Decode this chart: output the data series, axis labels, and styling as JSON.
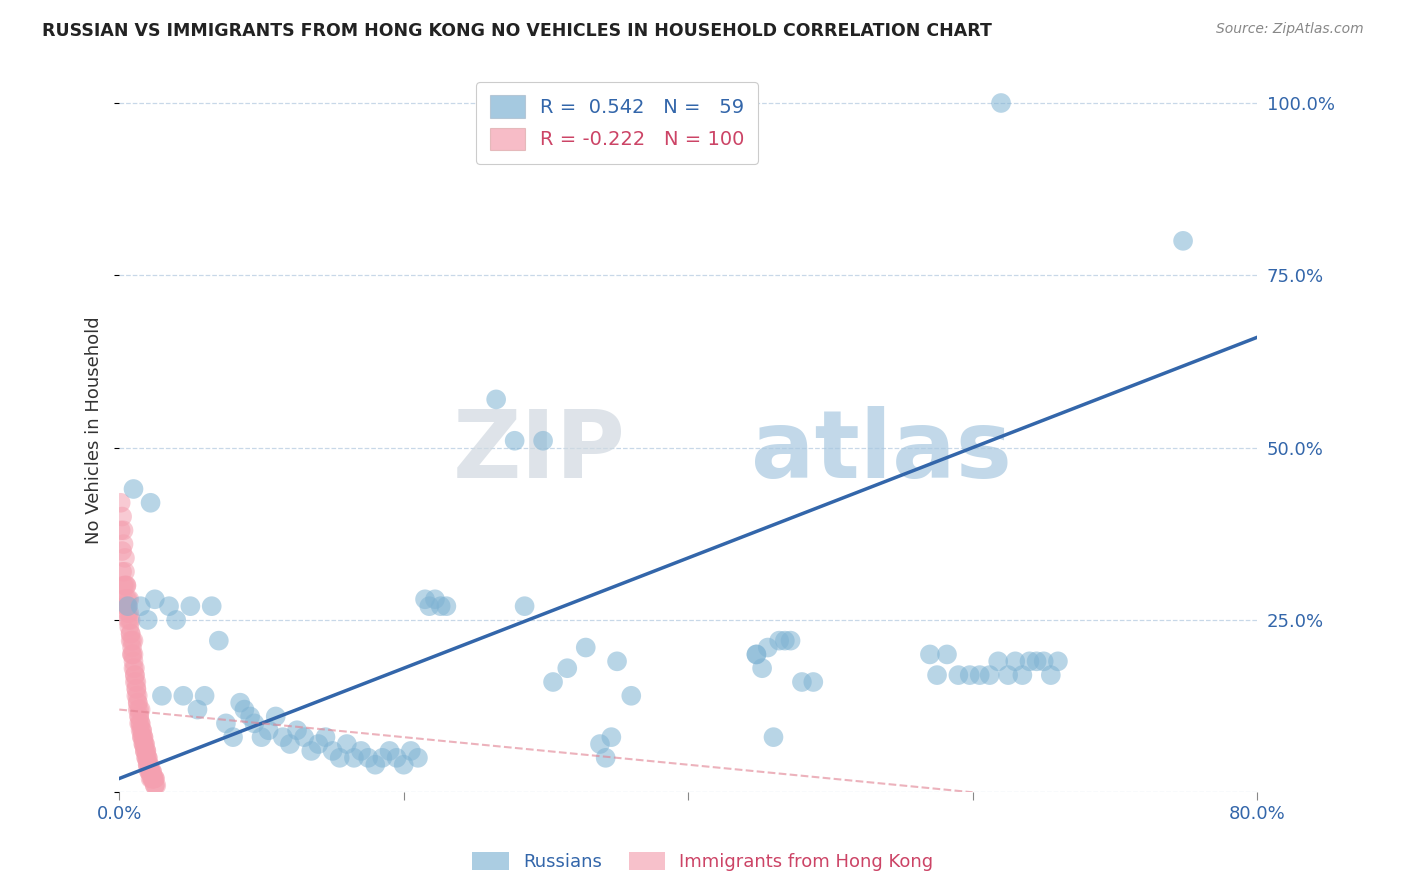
{
  "title": "RUSSIAN VS IMMIGRANTS FROM HONG KONG NO VEHICLES IN HOUSEHOLD CORRELATION CHART",
  "source": "Source: ZipAtlas.com",
  "ylabel_label": "No Vehicles in Household",
  "xlim": [
    0.0,
    0.8
  ],
  "ylim": [
    0.0,
    1.05
  ],
  "xticks": [
    0.0,
    0.2,
    0.4,
    0.6,
    0.8
  ],
  "xtick_labels": [
    "0.0%",
    "",
    "",
    "",
    "80.0%"
  ],
  "yticks": [
    0.0,
    0.25,
    0.5,
    0.75,
    1.0
  ],
  "ytick_labels": [
    "",
    "25.0%",
    "50.0%",
    "75.0%",
    "100.0%"
  ],
  "grid_color": "#c8d8e8",
  "background_color": "#ffffff",
  "watermark_zip": "ZIP",
  "watermark_atlas": "atlas",
  "legend_r_blue": "0.542",
  "legend_n_blue": "59",
  "legend_r_pink": "-0.222",
  "legend_n_pink": "100",
  "blue_color": "#7fb3d3",
  "pink_color": "#f4a0b0",
  "blue_line_color": "#3366aa",
  "pink_line_color": "#e08090",
  "blue_scatter": [
    [
      0.006,
      0.27
    ],
    [
      0.01,
      0.44
    ],
    [
      0.015,
      0.27
    ],
    [
      0.02,
      0.25
    ],
    [
      0.022,
      0.42
    ],
    [
      0.025,
      0.28
    ],
    [
      0.03,
      0.14
    ],
    [
      0.035,
      0.27
    ],
    [
      0.04,
      0.25
    ],
    [
      0.045,
      0.14
    ],
    [
      0.05,
      0.27
    ],
    [
      0.055,
      0.12
    ],
    [
      0.06,
      0.14
    ],
    [
      0.065,
      0.27
    ],
    [
      0.07,
      0.22
    ],
    [
      0.075,
      0.1
    ],
    [
      0.08,
      0.08
    ],
    [
      0.085,
      0.13
    ],
    [
      0.088,
      0.12
    ],
    [
      0.092,
      0.11
    ],
    [
      0.095,
      0.1
    ],
    [
      0.1,
      0.08
    ],
    [
      0.105,
      0.09
    ],
    [
      0.11,
      0.11
    ],
    [
      0.115,
      0.08
    ],
    [
      0.12,
      0.07
    ],
    [
      0.125,
      0.09
    ],
    [
      0.13,
      0.08
    ],
    [
      0.135,
      0.06
    ],
    [
      0.14,
      0.07
    ],
    [
      0.145,
      0.08
    ],
    [
      0.15,
      0.06
    ],
    [
      0.155,
      0.05
    ],
    [
      0.16,
      0.07
    ],
    [
      0.165,
      0.05
    ],
    [
      0.17,
      0.06
    ],
    [
      0.175,
      0.05
    ],
    [
      0.18,
      0.04
    ],
    [
      0.185,
      0.05
    ],
    [
      0.19,
      0.06
    ],
    [
      0.195,
      0.05
    ],
    [
      0.2,
      0.04
    ],
    [
      0.205,
      0.06
    ],
    [
      0.21,
      0.05
    ],
    [
      0.215,
      0.28
    ],
    [
      0.218,
      0.27
    ],
    [
      0.222,
      0.28
    ],
    [
      0.226,
      0.27
    ],
    [
      0.23,
      0.27
    ],
    [
      0.265,
      0.57
    ],
    [
      0.278,
      0.51
    ],
    [
      0.285,
      0.27
    ],
    [
      0.298,
      0.51
    ],
    [
      0.305,
      0.16
    ],
    [
      0.315,
      0.18
    ],
    [
      0.328,
      0.21
    ],
    [
      0.338,
      0.07
    ],
    [
      0.342,
      0.05
    ],
    [
      0.346,
      0.08
    ],
    [
      0.35,
      0.19
    ],
    [
      0.36,
      0.14
    ],
    [
      0.448,
      0.2
    ],
    [
      0.452,
      0.18
    ],
    [
      0.456,
      0.21
    ],
    [
      0.46,
      0.08
    ],
    [
      0.468,
      0.22
    ],
    [
      0.472,
      0.22
    ],
    [
      0.48,
      0.16
    ],
    [
      0.488,
      0.16
    ],
    [
      0.448,
      0.2
    ],
    [
      0.464,
      0.22
    ],
    [
      0.57,
      0.2
    ],
    [
      0.575,
      0.17
    ],
    [
      0.582,
      0.2
    ],
    [
      0.59,
      0.17
    ],
    [
      0.598,
      0.17
    ],
    [
      0.605,
      0.17
    ],
    [
      0.612,
      0.17
    ],
    [
      0.618,
      0.19
    ],
    [
      0.625,
      0.17
    ],
    [
      0.63,
      0.19
    ],
    [
      0.635,
      0.17
    ],
    [
      0.64,
      0.19
    ],
    [
      0.645,
      0.19
    ],
    [
      0.65,
      0.19
    ],
    [
      0.655,
      0.17
    ],
    [
      0.66,
      0.19
    ],
    [
      0.748,
      0.8
    ],
    [
      0.62,
      1.0
    ]
  ],
  "pink_scatter": [
    [
      0.001,
      0.38
    ],
    [
      0.001,
      0.42
    ],
    [
      0.002,
      0.35
    ],
    [
      0.002,
      0.4
    ],
    [
      0.002,
      0.32
    ],
    [
      0.003,
      0.38
    ],
    [
      0.003,
      0.3
    ],
    [
      0.003,
      0.36
    ],
    [
      0.003,
      0.28
    ],
    [
      0.004,
      0.34
    ],
    [
      0.004,
      0.3
    ],
    [
      0.004,
      0.32
    ],
    [
      0.004,
      0.27
    ],
    [
      0.005,
      0.3
    ],
    [
      0.005,
      0.3
    ],
    [
      0.005,
      0.28
    ],
    [
      0.005,
      0.27
    ],
    [
      0.006,
      0.27
    ],
    [
      0.006,
      0.25
    ],
    [
      0.006,
      0.26
    ],
    [
      0.006,
      0.28
    ],
    [
      0.007,
      0.25
    ],
    [
      0.007,
      0.28
    ],
    [
      0.007,
      0.24
    ],
    [
      0.007,
      0.26
    ],
    [
      0.008,
      0.22
    ],
    [
      0.008,
      0.25
    ],
    [
      0.008,
      0.23
    ],
    [
      0.008,
      0.23
    ],
    [
      0.009,
      0.21
    ],
    [
      0.009,
      0.22
    ],
    [
      0.009,
      0.2
    ],
    [
      0.009,
      0.2
    ],
    [
      0.01,
      0.19
    ],
    [
      0.01,
      0.22
    ],
    [
      0.01,
      0.18
    ],
    [
      0.01,
      0.2
    ],
    [
      0.011,
      0.17
    ],
    [
      0.011,
      0.18
    ],
    [
      0.011,
      0.16
    ],
    [
      0.011,
      0.17
    ],
    [
      0.012,
      0.15
    ],
    [
      0.012,
      0.16
    ],
    [
      0.012,
      0.14
    ],
    [
      0.012,
      0.15
    ],
    [
      0.013,
      0.13
    ],
    [
      0.013,
      0.14
    ],
    [
      0.013,
      0.12
    ],
    [
      0.013,
      0.13
    ],
    [
      0.014,
      0.11
    ],
    [
      0.014,
      0.12
    ],
    [
      0.014,
      0.1
    ],
    [
      0.014,
      0.11
    ],
    [
      0.015,
      0.1
    ],
    [
      0.015,
      0.12
    ],
    [
      0.015,
      0.09
    ],
    [
      0.015,
      0.1
    ],
    [
      0.016,
      0.09
    ],
    [
      0.016,
      0.09
    ],
    [
      0.016,
      0.08
    ],
    [
      0.016,
      0.08
    ],
    [
      0.017,
      0.08
    ],
    [
      0.017,
      0.08
    ],
    [
      0.017,
      0.07
    ],
    [
      0.017,
      0.07
    ],
    [
      0.018,
      0.07
    ],
    [
      0.018,
      0.07
    ],
    [
      0.018,
      0.06
    ],
    [
      0.018,
      0.06
    ],
    [
      0.019,
      0.06
    ],
    [
      0.019,
      0.06
    ],
    [
      0.019,
      0.05
    ],
    [
      0.019,
      0.05
    ],
    [
      0.02,
      0.05
    ],
    [
      0.02,
      0.05
    ],
    [
      0.02,
      0.04
    ],
    [
      0.02,
      0.04
    ],
    [
      0.021,
      0.04
    ],
    [
      0.021,
      0.04
    ],
    [
      0.021,
      0.03
    ],
    [
      0.021,
      0.03
    ],
    [
      0.022,
      0.03
    ],
    [
      0.022,
      0.03
    ],
    [
      0.022,
      0.03
    ],
    [
      0.022,
      0.02
    ],
    [
      0.023,
      0.03
    ],
    [
      0.023,
      0.03
    ],
    [
      0.023,
      0.02
    ],
    [
      0.023,
      0.02
    ],
    [
      0.024,
      0.02
    ],
    [
      0.024,
      0.02
    ],
    [
      0.024,
      0.02
    ],
    [
      0.024,
      0.02
    ],
    [
      0.025,
      0.02
    ],
    [
      0.025,
      0.02
    ],
    [
      0.025,
      0.01
    ],
    [
      0.025,
      0.01
    ],
    [
      0.026,
      0.01
    ]
  ],
  "blue_line": [
    [
      0.0,
      0.02
    ],
    [
      0.8,
      0.66
    ]
  ],
  "pink_line": [
    [
      0.0,
      0.12
    ],
    [
      0.6,
      0.0
    ]
  ]
}
